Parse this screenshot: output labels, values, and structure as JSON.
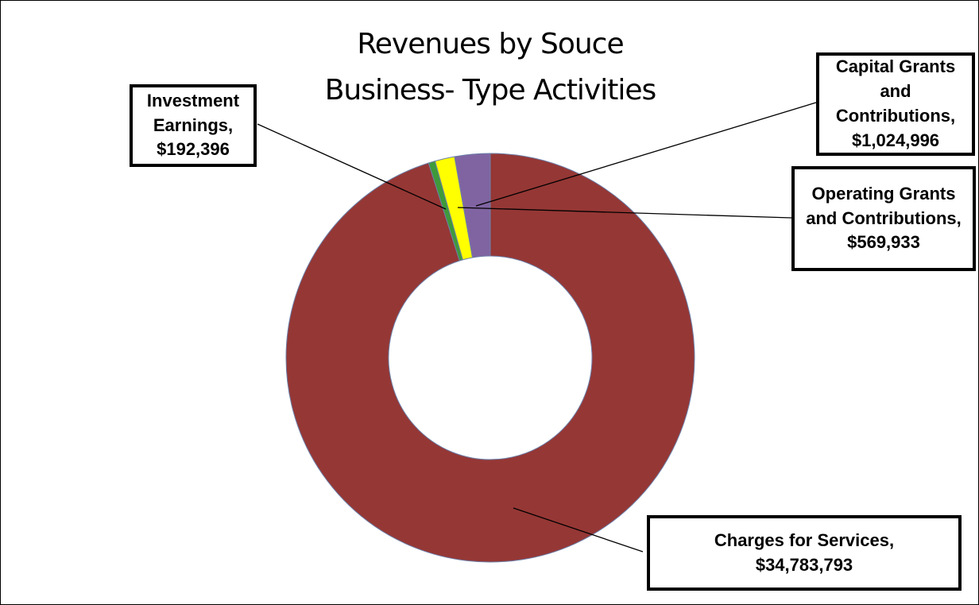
{
  "chart_data": {
    "type": "donut",
    "title": "Revenues by Souce",
    "subtitle": "Business- Type Activities",
    "categories": [
      "Charges for Services,",
      "Investment Earnings,",
      "Operating Grants and Contributions,",
      "Capital Grants and Contributions,"
    ],
    "values": [
      34783793,
      192396,
      569933,
      1024996
    ],
    "value_labels": [
      "$34,783,793",
      "$192,396",
      "$569,933",
      "$1,024,996"
    ],
    "colors": [
      "#953735",
      "#3e9a3a",
      "#ffff00",
      "#8064a2"
    ]
  }
}
